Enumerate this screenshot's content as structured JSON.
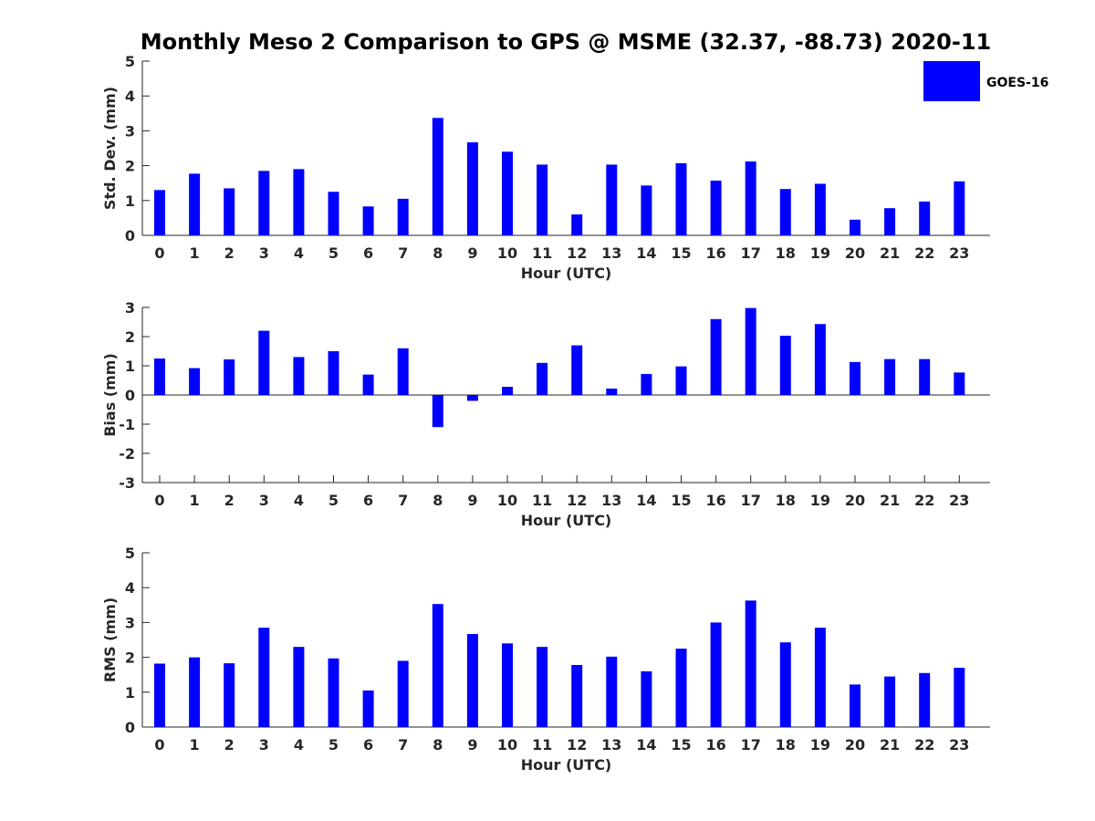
{
  "chart_data": {
    "type": "bar",
    "title": "Monthly Meso 2 Comparison to GPS @ MSME (32.37, -88.73) 2020-11",
    "legend": {
      "label": "GOES-16",
      "color": "#0000ff",
      "placement": "top-right"
    },
    "bar_color": "#0000ff",
    "categories": [
      "0",
      "1",
      "2",
      "3",
      "4",
      "5",
      "6",
      "7",
      "8",
      "9",
      "10",
      "11",
      "12",
      "13",
      "14",
      "15",
      "16",
      "17",
      "18",
      "19",
      "20",
      "21",
      "22",
      "23"
    ],
    "panels": [
      {
        "name": "std-dev",
        "ylabel": "Std. Dev. (mm)",
        "xlabel": "Hour (UTC)",
        "ylim": [
          0,
          5
        ],
        "yticks": [
          "0",
          "1",
          "2",
          "3",
          "4",
          "5"
        ],
        "values": [
          1.3,
          1.77,
          1.35,
          1.85,
          1.9,
          1.25,
          0.83,
          1.05,
          3.37,
          2.67,
          2.4,
          2.03,
          0.6,
          2.03,
          1.43,
          2.07,
          1.57,
          2.12,
          1.33,
          1.48,
          0.45,
          0.78,
          0.97,
          1.55
        ]
      },
      {
        "name": "bias",
        "ylabel": "Bias (mm)",
        "xlabel": "Hour (UTC)",
        "ylim": [
          -3,
          3
        ],
        "yticks": [
          "-3",
          "-2",
          "-1",
          "0",
          "1",
          "2",
          "3"
        ],
        "values": [
          1.25,
          0.92,
          1.22,
          2.2,
          1.3,
          1.5,
          0.7,
          1.6,
          -1.1,
          -0.2,
          0.28,
          1.1,
          1.7,
          0.22,
          0.72,
          0.98,
          2.6,
          2.98,
          2.03,
          2.43,
          1.13,
          1.23,
          1.23,
          0.77
        ]
      },
      {
        "name": "rms",
        "ylabel": "RMS (mm)",
        "xlabel": "Hour (UTC)",
        "ylim": [
          0,
          5
        ],
        "yticks": [
          "0",
          "1",
          "2",
          "3",
          "4",
          "5"
        ],
        "values": [
          1.82,
          2.0,
          1.83,
          2.85,
          2.3,
          1.97,
          1.05,
          1.9,
          3.53,
          2.67,
          2.4,
          2.3,
          1.78,
          2.02,
          1.6,
          2.25,
          3.0,
          3.63,
          2.43,
          2.85,
          1.22,
          1.45,
          1.55,
          1.7
        ]
      }
    ]
  }
}
